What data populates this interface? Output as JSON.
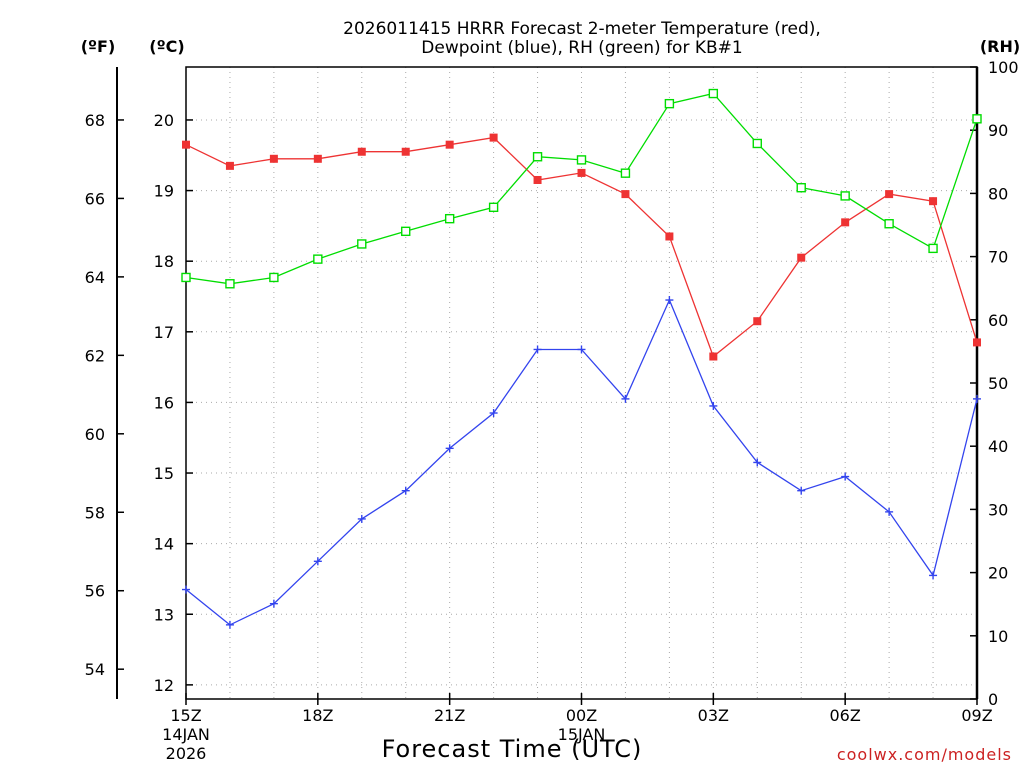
{
  "chart_data": {
    "type": "line",
    "title": "2026011415 HRRR Forecast 2-meter Temperature (red),",
    "subtitle": "Dewpoint (blue), RH (green) for KB#1",
    "xlabel": "Forecast Time (UTC)",
    "credit": "coolwx.com/models",
    "units": {
      "fahrenheit": "(ºF)",
      "celsius": "(ºC)",
      "rh": "(RH)"
    },
    "x_hours": [
      0,
      1,
      2,
      3,
      4,
      5,
      6,
      7,
      8,
      9,
      10,
      11,
      12,
      13,
      14,
      15,
      16,
      17,
      18
    ],
    "x_ticks": [
      {
        "hour": 0,
        "lines": [
          "15Z",
          "14JAN",
          "2026"
        ]
      },
      {
        "hour": 3,
        "lines": [
          "18Z"
        ]
      },
      {
        "hour": 6,
        "lines": [
          "21Z"
        ]
      },
      {
        "hour": 9,
        "lines": [
          "00Z",
          "15JAN"
        ]
      },
      {
        "hour": 12,
        "lines": [
          "03Z"
        ]
      },
      {
        "hour": 15,
        "lines": [
          "06Z"
        ]
      },
      {
        "hour": 18,
        "lines": [
          "09Z"
        ]
      }
    ],
    "celsius_axis": {
      "ylim": [
        11.8,
        20.75
      ],
      "ticks": [
        12,
        13,
        14,
        15,
        16,
        17,
        18,
        19,
        20
      ]
    },
    "fahrenheit_axis": {
      "ylim": [
        53.24,
        69.35
      ],
      "ticks": [
        54,
        56,
        58,
        60,
        62,
        64,
        66,
        68
      ]
    },
    "rh_axis": {
      "ylim": [
        0,
        100
      ],
      "ticks": [
        0,
        10,
        20,
        30,
        40,
        50,
        60,
        70,
        80,
        90,
        100
      ]
    },
    "series": [
      {
        "name": "Temperature",
        "axis": "celsius",
        "color": "#ee3333",
        "marker": "filled-square",
        "values": [
          19.65,
          19.35,
          19.45,
          19.45,
          19.55,
          19.55,
          19.65,
          19.75,
          19.15,
          19.25,
          18.95,
          18.35,
          16.65,
          17.15,
          18.05,
          18.55,
          18.95,
          18.85,
          16.85
        ]
      },
      {
        "name": "Dewpoint",
        "axis": "celsius",
        "color": "#3344ee",
        "marker": "plus",
        "values": [
          13.35,
          12.85,
          13.15,
          13.75,
          14.35,
          14.75,
          15.35,
          15.85,
          16.75,
          16.75,
          16.05,
          17.45,
          15.95,
          15.15,
          14.75,
          14.95,
          14.45,
          13.55,
          16.05
        ]
      },
      {
        "name": "RH",
        "axis": "rh",
        "color": "#00dd00",
        "marker": "open-square",
        "values": [
          66.7,
          65.7,
          66.7,
          69.6,
          72,
          74,
          76,
          77.8,
          85.8,
          85.3,
          83.2,
          94.2,
          95.8,
          87.9,
          80.9,
          79.6,
          75.2,
          71.3,
          91.8
        ]
      }
    ]
  }
}
